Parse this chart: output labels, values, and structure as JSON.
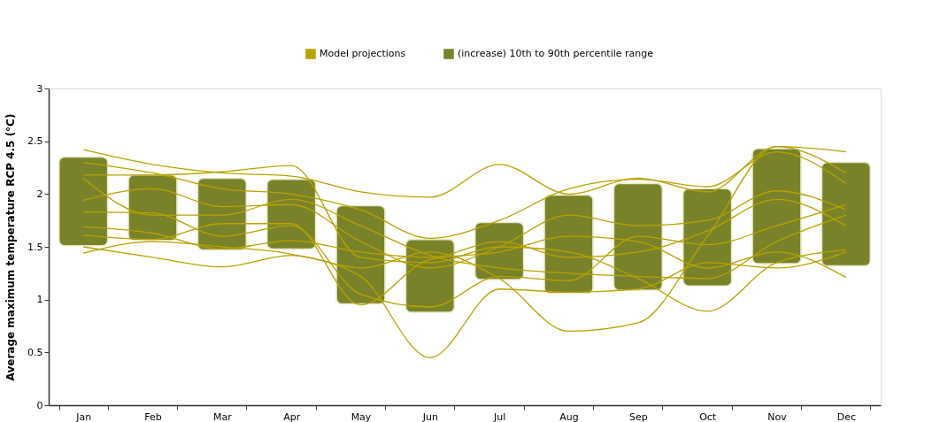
{
  "chart_data": {
    "type": "bar",
    "ylabel": "Average maximum temperature RCP 4.5 (°C)",
    "categories": [
      "Jan",
      "Feb",
      "Mar",
      "Apr",
      "May",
      "Jun",
      "Jul",
      "Aug",
      "Sep",
      "Oct",
      "Nov",
      "Dec"
    ],
    "ylim": [
      0,
      3
    ],
    "yticks": [
      0,
      0.5,
      1,
      1.5,
      2,
      2.5,
      3
    ],
    "grid": false,
    "legend": "top",
    "series": [
      {
        "type": "line",
        "name": "Model projections",
        "color": "#b8a200",
        "values": [
          2.42,
          2.28,
          2.2,
          2.17,
          2.02,
          1.97,
          2.28,
          2.0,
          2.15,
          2.02,
          2.45,
          2.4
        ]
      },
      {
        "type": "line",
        "color": "#b8a200",
        "values": [
          1.44,
          1.55,
          1.5,
          1.43,
          1.22,
          0.45,
          1.1,
          1.07,
          1.1,
          1.35,
          1.3,
          1.45
        ]
      },
      {
        "type": "line",
        "color": "#b8a200",
        "values": [
          1.5,
          1.4,
          1.31,
          1.42,
          1.3,
          1.45,
          1.2,
          0.7,
          0.78,
          1.6,
          2.45,
          2.2
        ]
      },
      {
        "type": "line",
        "color": "#b8a200",
        "values": [
          2.18,
          2.18,
          2.21,
          2.27,
          1.4,
          1.35,
          1.5,
          1.45,
          1.2,
          0.89,
          1.35,
          1.47
        ]
      },
      {
        "type": "line",
        "color": "#b8a200",
        "values": [
          2.3,
          2.2,
          2.05,
          2.0,
          1.85,
          1.58,
          1.75,
          2.05,
          2.14,
          2.07,
          2.4,
          2.1
        ]
      },
      {
        "type": "line",
        "color": "#b8a200",
        "values": [
          1.94,
          2.05,
          1.88,
          1.9,
          1.55,
          1.3,
          1.5,
          1.8,
          1.7,
          1.75,
          2.03,
          1.85
        ]
      },
      {
        "type": "line",
        "color": "#b8a200",
        "values": [
          1.83,
          1.82,
          1.6,
          1.7,
          1.05,
          0.93,
          1.22,
          1.18,
          1.6,
          1.52,
          1.7,
          1.9
        ]
      },
      {
        "type": "line",
        "color": "#b8a200",
        "values": [
          1.69,
          1.63,
          1.48,
          1.56,
          1.45,
          1.4,
          1.55,
          1.4,
          1.45,
          1.65,
          1.95,
          1.7
        ]
      },
      {
        "type": "line",
        "color": "#b8a200",
        "values": [
          1.61,
          1.57,
          1.72,
          1.72,
          0.95,
          1.38,
          1.45,
          1.6,
          1.55,
          1.3,
          1.45,
          1.21
        ]
      },
      {
        "type": "line",
        "color": "#b8a200",
        "values": [
          2.15,
          1.8,
          1.8,
          1.95,
          1.7,
          1.42,
          1.3,
          1.25,
          1.22,
          1.2,
          1.55,
          1.8
        ]
      },
      {
        "name": "(increase) 10th to 90th percentile range",
        "color": "#7a8229",
        "base": [
          1.51,
          1.56,
          1.47,
          1.48,
          0.96,
          0.88,
          1.19,
          1.06,
          1.09,
          1.13,
          1.34,
          1.32
        ],
        "values": [
          0.84,
          0.62,
          0.68,
          0.66,
          0.93,
          0.69,
          0.54,
          0.93,
          1.01,
          0.92,
          1.09,
          0.98
        ]
      }
    ]
  }
}
